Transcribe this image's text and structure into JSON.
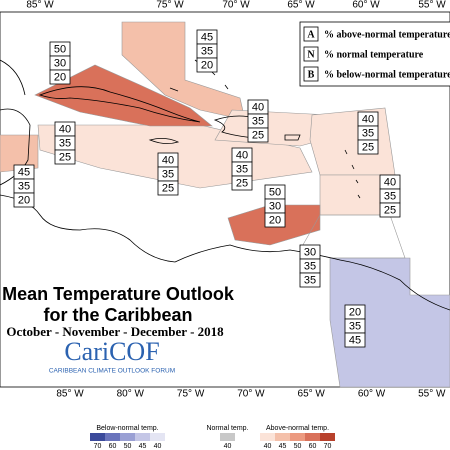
{
  "title": {
    "lines": [
      "Mean Temperature Outlook",
      "for the Caribbean"
    ],
    "season": "October - November - December - 2018"
  },
  "logo": {
    "name": "CariCOF",
    "tagline": "CARIBBEAN CLIMATE OUTLOOK FORUM"
  },
  "key": [
    {
      "letter": "A",
      "text": "% above-normal temperature"
    },
    {
      "letter": "N",
      "text": "% normal temperature"
    },
    {
      "letter": "B",
      "text": "% below-normal temperature"
    }
  ],
  "longitudes_top": [
    "85° W",
    "75° W",
    "70° W",
    "65° W",
    "60° W",
    "55° W"
  ],
  "longitudes_bottom": [
    "85° W",
    "80° W",
    "75° W",
    "70° W",
    "65° W",
    "60° W",
    "55° W"
  ],
  "regions": [
    {
      "above": 50,
      "normal": 30,
      "below": 20
    },
    {
      "above": 45,
      "normal": 35,
      "below": 20
    },
    {
      "above": 40,
      "normal": 35,
      "below": 25
    },
    {
      "above": 40,
      "normal": 35,
      "below": 25
    },
    {
      "above": 45,
      "normal": 35,
      "below": 20
    },
    {
      "above": 40,
      "normal": 35,
      "below": 25
    },
    {
      "above": 40,
      "normal": 35,
      "below": 25
    },
    {
      "above": 40,
      "normal": 35,
      "below": 25
    },
    {
      "above": 40,
      "normal": 35,
      "below": 25
    },
    {
      "above": 50,
      "normal": 30,
      "below": 20
    },
    {
      "above": 30,
      "normal": 35,
      "below": 35
    },
    {
      "above": 20,
      "normal": 35,
      "below": 45
    }
  ],
  "legend": {
    "below": {
      "label": "Below-normal temp.",
      "colors": [
        "#3b4a9b",
        "#6a74bc",
        "#9aa0d4",
        "#c4c6e6",
        "#e4e5f3"
      ],
      "ticks": [
        70,
        60,
        50,
        45,
        40
      ]
    },
    "normal": {
      "label": "Normal temp.",
      "colors": [
        "#c8c8c8"
      ],
      "ticks": [
        40
      ]
    },
    "above": {
      "label": "Above-normal temp.",
      "colors": [
        "#fbe3d8",
        "#f4c0aa",
        "#ec9a80",
        "#d9715a",
        "#b8412c"
      ],
      "ticks": [
        40,
        45,
        50,
        60,
        70
      ]
    }
  }
}
